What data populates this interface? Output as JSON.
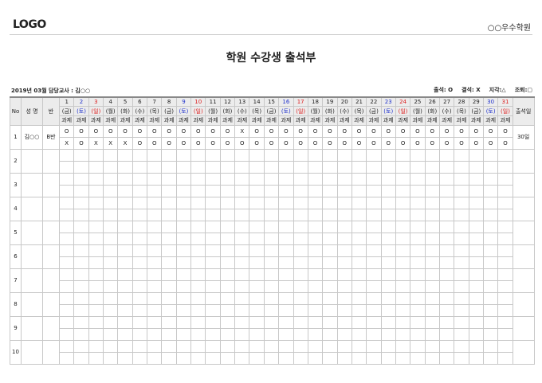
{
  "header": {
    "logo": "LOGO",
    "academy": "○○우수학원",
    "title": "학원 수강생 출석부"
  },
  "info": "2019년 03월 담당교사 : 김○○",
  "legend": [
    "출석: O",
    "결석: X",
    "지각:△",
    "조퇴:▢"
  ],
  "colors": {
    "saturday": "#2233cc",
    "sunday": "#dd2222",
    "header_bg": "#ececec"
  },
  "columns": {
    "no": "No",
    "name": "성 명",
    "class": "반",
    "task": "과제",
    "attendance_days": "출석일"
  },
  "days": [
    {
      "d": "1",
      "w": "(금)"
    },
    {
      "d": "2",
      "w": "(토)",
      "t": "sat"
    },
    {
      "d": "3",
      "w": "(일)",
      "t": "sun"
    },
    {
      "d": "4",
      "w": "(월)"
    },
    {
      "d": "5",
      "w": "(화)"
    },
    {
      "d": "6",
      "w": "(수)"
    },
    {
      "d": "7",
      "w": "(목)"
    },
    {
      "d": "8",
      "w": "(금)"
    },
    {
      "d": "9",
      "w": "(토)",
      "t": "sat"
    },
    {
      "d": "10",
      "w": "(일)",
      "t": "sun"
    },
    {
      "d": "11",
      "w": "(월)"
    },
    {
      "d": "12",
      "w": "(화)"
    },
    {
      "d": "13",
      "w": "(수)"
    },
    {
      "d": "14",
      "w": "(목)"
    },
    {
      "d": "15",
      "w": "(금)"
    },
    {
      "d": "16",
      "w": "(토)",
      "t": "sat"
    },
    {
      "d": "17",
      "w": "(일)",
      "t": "sun"
    },
    {
      "d": "18",
      "w": "(월)"
    },
    {
      "d": "19",
      "w": "(화)"
    },
    {
      "d": "20",
      "w": "(수)"
    },
    {
      "d": "21",
      "w": "(목)"
    },
    {
      "d": "22",
      "w": "(금)"
    },
    {
      "d": "23",
      "w": "(토)",
      "t": "sat"
    },
    {
      "d": "24",
      "w": "(일)",
      "t": "sun"
    },
    {
      "d": "25",
      "w": "(월)"
    },
    {
      "d": "26",
      "w": "(화)"
    },
    {
      "d": "27",
      "w": "(수)"
    },
    {
      "d": "28",
      "w": "(목)"
    },
    {
      "d": "29",
      "w": "(금)"
    },
    {
      "d": "30",
      "w": "(토)",
      "t": "sat"
    },
    {
      "d": "31",
      "w": "(일)",
      "t": "sun"
    }
  ],
  "students": [
    {
      "no": "1",
      "name": "김○○",
      "class": "B반",
      "attendance": [
        "O",
        "O",
        "O",
        "O",
        "O",
        "O",
        "O",
        "O",
        "O",
        "O",
        "O",
        "O",
        "X",
        "O",
        "O",
        "O",
        "O",
        "O",
        "O",
        "O",
        "O",
        "O",
        "O",
        "O",
        "O",
        "O",
        "O",
        "O",
        "O",
        "O",
        "O"
      ],
      "task": [
        "X",
        "O",
        "X",
        "X",
        "X",
        "O",
        "O",
        "O",
        "O",
        "O",
        "O",
        "O",
        "O",
        "O",
        "O",
        "O",
        "O",
        "O",
        "O",
        "O",
        "O",
        "O",
        "O",
        "O",
        "O",
        "O",
        "O",
        "O",
        "O",
        "O",
        "O"
      ],
      "total": "30일"
    },
    {
      "no": "2"
    },
    {
      "no": "3"
    },
    {
      "no": "4"
    },
    {
      "no": "5"
    },
    {
      "no": "6"
    },
    {
      "no": "7"
    },
    {
      "no": "8"
    },
    {
      "no": "9"
    },
    {
      "no": "10"
    }
  ]
}
